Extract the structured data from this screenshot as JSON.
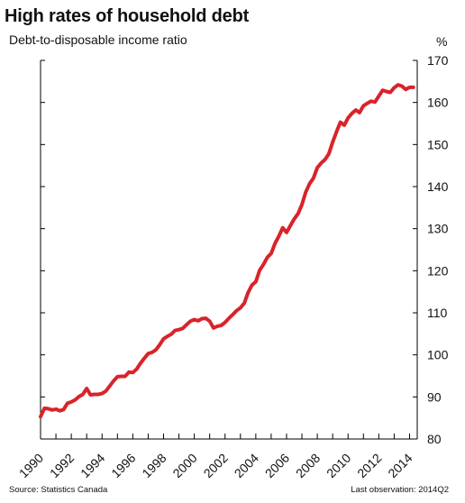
{
  "header": {
    "title": "High rates of household debt",
    "subtitle": "Debt-to-disposable income ratio",
    "unit": "%"
  },
  "footer": {
    "source": "Source: Statistics Canada",
    "last_observation": "Last observation: 2014Q2"
  },
  "colors": {
    "series": "#d9232a",
    "axis": "#000000"
  },
  "chart_data": {
    "type": "line",
    "title": "High rates of household debt",
    "subtitle": "Debt-to-disposable income ratio",
    "xlabel": "",
    "ylabel": "%",
    "y_axis_side": "right",
    "grid": false,
    "legend": "none",
    "xlim": [
      1990,
      2014.5
    ],
    "ylim": [
      80,
      170
    ],
    "x_tick_labels": [
      "1990",
      "1992",
      "1994",
      "1996",
      "1998",
      "2000",
      "2002",
      "2004",
      "2006",
      "2008",
      "2010",
      "2012",
      "2014"
    ],
    "y_tick_labels": [
      "80",
      "90",
      "100",
      "110",
      "120",
      "130",
      "140",
      "150",
      "160",
      "170"
    ],
    "series": [
      {
        "x": [
          1990.0,
          1990.25,
          1990.5,
          1990.75,
          1991.0,
          1991.25,
          1991.5,
          1991.75,
          1992.0,
          1992.25,
          1992.5,
          1992.75,
          1993.0,
          1993.25,
          1993.5,
          1993.75,
          1994.0,
          1994.25,
          1994.5,
          1994.75,
          1995.0,
          1995.25,
          1995.5,
          1995.75,
          1996.0,
          1996.25,
          1996.5,
          1996.75,
          1997.0,
          1997.25,
          1997.5,
          1997.75,
          1998.0,
          1998.25,
          1998.5,
          1998.75,
          1999.0,
          1999.25,
          1999.5,
          1999.75,
          2000.0,
          2000.25,
          2000.5,
          2000.75,
          2001.0,
          2001.25,
          2001.5,
          2001.75,
          2002.0,
          2002.25,
          2002.5,
          2002.75,
          2003.0,
          2003.25,
          2003.5,
          2003.75,
          2004.0,
          2004.25,
          2004.5,
          2004.75,
          2005.0,
          2005.25,
          2005.5,
          2005.75,
          2006.0,
          2006.25,
          2006.5,
          2006.75,
          2007.0,
          2007.25,
          2007.5,
          2007.75,
          2008.0,
          2008.25,
          2008.5,
          2008.75,
          2009.0,
          2009.25,
          2009.5,
          2009.75,
          2010.0,
          2010.25,
          2010.5,
          2010.75,
          2011.0,
          2011.25,
          2011.5,
          2011.75,
          2012.0,
          2012.25,
          2012.5,
          2012.75,
          2013.0,
          2013.25,
          2013.5,
          2013.75,
          2014.0,
          2014.25
        ],
        "values": [
          85.3,
          87.3,
          87.2,
          86.9,
          87.1,
          86.7,
          87.0,
          88.5,
          88.8,
          89.3,
          90.1,
          90.6,
          92.0,
          90.5,
          90.6,
          90.6,
          90.8,
          91.4,
          92.6,
          93.8,
          94.8,
          94.9,
          94.9,
          95.9,
          95.8,
          96.6,
          98.0,
          99.2,
          100.3,
          100.6,
          101.2,
          102.4,
          103.8,
          104.4,
          104.9,
          105.8,
          106.0,
          106.3,
          107.2,
          108.0,
          108.4,
          108.1,
          108.6,
          108.7,
          108.0,
          106.4,
          106.8,
          107.0,
          107.7,
          108.7,
          109.6,
          110.5,
          111.2,
          112.3,
          114.8,
          116.6,
          117.4,
          120.1,
          121.5,
          123.2,
          124.1,
          126.5,
          128.2,
          130.2,
          129.1,
          130.7,
          132.3,
          133.6,
          135.7,
          138.7,
          140.7,
          142.0,
          144.5,
          145.6,
          146.4,
          147.8,
          150.6,
          153.0,
          155.3,
          154.6,
          156.3,
          157.4,
          158.2,
          157.6,
          159.2,
          159.8,
          160.3,
          160.1,
          161.5,
          162.9,
          162.6,
          162.4,
          163.5,
          164.2,
          163.9,
          163.1,
          163.6,
          163.6
        ]
      }
    ]
  }
}
